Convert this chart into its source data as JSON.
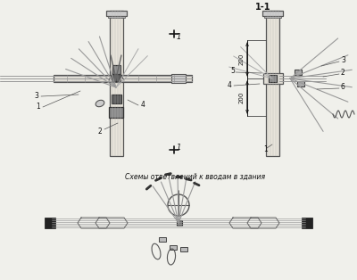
{
  "bg_color": "#f0f0eb",
  "lc": "#666666",
  "dc": "#111111",
  "mc": "#888888",
  "title_bottom": "Схемы ответвлений к вводам в здания",
  "label_11": "1-1",
  "dim_200": "200",
  "sec_label": "1",
  "lab_l": [
    "1",
    "2",
    "3",
    "4"
  ],
  "lab_r": [
    "1",
    "2",
    "3",
    "4",
    "5",
    "6"
  ]
}
